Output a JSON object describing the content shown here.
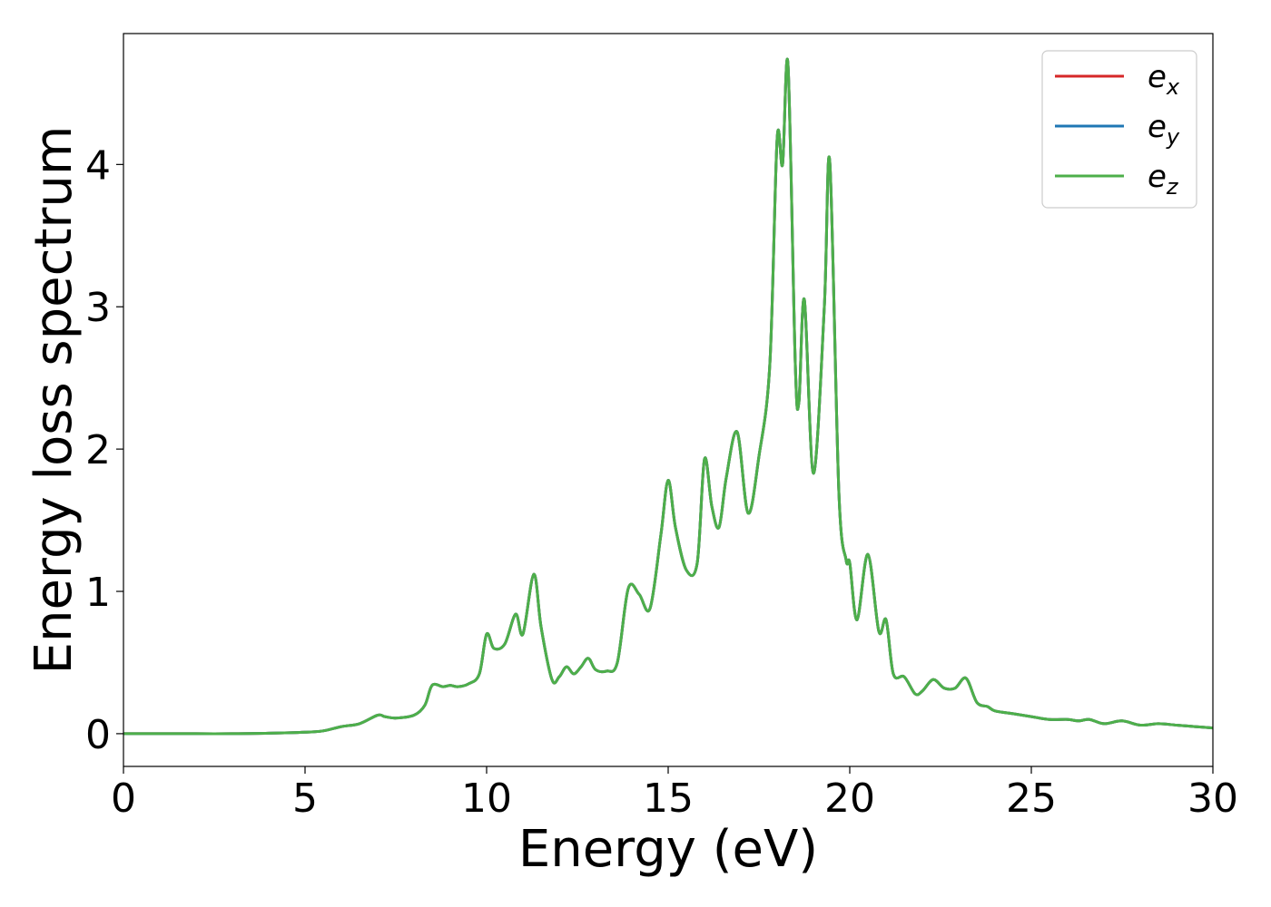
{
  "chart_data": {
    "type": "line",
    "title": "",
    "xlabel": "Energy (eV)",
    "ylabel": "Energy loss spectrum",
    "xlim": [
      0,
      30
    ],
    "ylim": [
      -0.23,
      4.92
    ],
    "xticks": [
      0,
      5,
      10,
      15,
      20,
      25,
      30
    ],
    "xtick_labels": [
      "0",
      "5",
      "10",
      "15",
      "20",
      "25",
      "30"
    ],
    "yticks": [
      0,
      1,
      2,
      3,
      4
    ],
    "ytick_labels": [
      "0",
      "1",
      "2",
      "3",
      "4"
    ],
    "grid": false,
    "legend_position": "top-right",
    "x": [
      0,
      1,
      2,
      3,
      4,
      5,
      5.5,
      6,
      6.5,
      7,
      7.2,
      7.5,
      8,
      8.3,
      8.5,
      8.8,
      9,
      9.2,
      9.5,
      9.8,
      10,
      10.2,
      10.5,
      10.8,
      11,
      11.3,
      11.5,
      11.8,
      12,
      12.2,
      12.4,
      12.6,
      12.8,
      13,
      13.3,
      13.6,
      13.9,
      14.2,
      14.5,
      14.8,
      15,
      15.2,
      15.5,
      15.8,
      16,
      16.2,
      16.4,
      16.6,
      16.9,
      17.2,
      17.5,
      17.8,
      18,
      18.15,
      18.3,
      18.5,
      18.6,
      18.75,
      19,
      19.3,
      19.45,
      19.7,
      19.9,
      20,
      20.2,
      20.5,
      20.8,
      21,
      21.2,
      21.5,
      21.8,
      22,
      22.3,
      22.6,
      22.9,
      23.2,
      23.5,
      23.8,
      24,
      24.5,
      25,
      25.5,
      26,
      26.3,
      26.6,
      27,
      27.5,
      28,
      28.5,
      29,
      29.5,
      30
    ],
    "series": [
      {
        "name": "e_x",
        "label": "e",
        "subscript": "x",
        "color": "#d62728",
        "values": [
          0,
          0,
          0,
          0,
          0.003,
          0.01,
          0.02,
          0.05,
          0.07,
          0.13,
          0.12,
          0.11,
          0.13,
          0.2,
          0.34,
          0.33,
          0.34,
          0.33,
          0.35,
          0.42,
          0.7,
          0.6,
          0.63,
          0.84,
          0.7,
          1.12,
          0.75,
          0.38,
          0.4,
          0.47,
          0.42,
          0.47,
          0.53,
          0.45,
          0.44,
          0.5,
          1.02,
          0.98,
          0.88,
          1.4,
          1.78,
          1.45,
          1.15,
          1.2,
          1.93,
          1.6,
          1.45,
          1.8,
          2.12,
          1.55,
          1.95,
          2.6,
          4.18,
          4.0,
          4.7,
          2.6,
          2.33,
          3.05,
          1.83,
          3.0,
          4.02,
          1.7,
          1.22,
          1.2,
          0.8,
          1.26,
          0.72,
          0.8,
          0.42,
          0.4,
          0.28,
          0.3,
          0.38,
          0.32,
          0.32,
          0.39,
          0.22,
          0.19,
          0.16,
          0.14,
          0.12,
          0.1,
          0.1,
          0.09,
          0.1,
          0.07,
          0.09,
          0.06,
          0.07,
          0.06,
          0.05,
          0.04
        ]
      },
      {
        "name": "e_y",
        "label": "e",
        "subscript": "y",
        "color": "#1f77b4",
        "values": [
          0,
          0,
          0,
          0,
          0.003,
          0.01,
          0.02,
          0.05,
          0.07,
          0.13,
          0.12,
          0.11,
          0.13,
          0.2,
          0.34,
          0.33,
          0.34,
          0.33,
          0.35,
          0.42,
          0.7,
          0.6,
          0.63,
          0.84,
          0.7,
          1.12,
          0.75,
          0.38,
          0.4,
          0.47,
          0.42,
          0.47,
          0.53,
          0.45,
          0.44,
          0.5,
          1.02,
          0.98,
          0.88,
          1.4,
          1.78,
          1.45,
          1.15,
          1.2,
          1.93,
          1.6,
          1.45,
          1.8,
          2.12,
          1.55,
          1.95,
          2.6,
          4.18,
          4.0,
          4.7,
          2.6,
          2.33,
          3.05,
          1.83,
          3.0,
          4.02,
          1.7,
          1.22,
          1.2,
          0.8,
          1.26,
          0.72,
          0.8,
          0.42,
          0.4,
          0.28,
          0.3,
          0.38,
          0.32,
          0.32,
          0.39,
          0.22,
          0.19,
          0.16,
          0.14,
          0.12,
          0.1,
          0.1,
          0.09,
          0.1,
          0.07,
          0.09,
          0.06,
          0.07,
          0.06,
          0.05,
          0.04
        ]
      },
      {
        "name": "e_z",
        "label": "e",
        "subscript": "z",
        "color": "#4daf4a",
        "values": [
          0,
          0,
          0,
          0,
          0.003,
          0.01,
          0.02,
          0.05,
          0.07,
          0.13,
          0.12,
          0.11,
          0.13,
          0.2,
          0.34,
          0.33,
          0.34,
          0.33,
          0.35,
          0.42,
          0.7,
          0.6,
          0.63,
          0.84,
          0.7,
          1.12,
          0.75,
          0.38,
          0.4,
          0.47,
          0.42,
          0.47,
          0.53,
          0.45,
          0.44,
          0.5,
          1.02,
          0.98,
          0.88,
          1.4,
          1.78,
          1.45,
          1.15,
          1.2,
          1.93,
          1.6,
          1.45,
          1.8,
          2.12,
          1.55,
          1.95,
          2.6,
          4.18,
          4.0,
          4.7,
          2.6,
          2.33,
          3.05,
          1.83,
          3.0,
          4.02,
          1.7,
          1.22,
          1.2,
          0.8,
          1.26,
          0.72,
          0.8,
          0.42,
          0.4,
          0.28,
          0.3,
          0.38,
          0.32,
          0.32,
          0.39,
          0.22,
          0.19,
          0.16,
          0.14,
          0.12,
          0.1,
          0.1,
          0.09,
          0.1,
          0.07,
          0.09,
          0.06,
          0.07,
          0.06,
          0.05,
          0.04
        ]
      }
    ]
  }
}
